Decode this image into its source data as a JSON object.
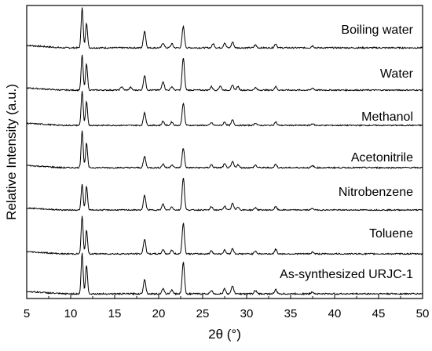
{
  "chart_data": {
    "type": "line",
    "xlabel": "2θ (°)",
    "ylabel": "Relative Intensity (a.u.)",
    "xlim": [
      5,
      50
    ],
    "xticks": [
      "5",
      "10",
      "15",
      "20",
      "25",
      "30",
      "35",
      "40",
      "45",
      "50"
    ],
    "grid": false,
    "legend": "none",
    "line_color": "#000000",
    "series": [
      {
        "name": "Boiling water",
        "peaks": [
          [
            11.3,
            1.0
          ],
          [
            11.8,
            0.62
          ],
          [
            18.4,
            0.42
          ],
          [
            20.5,
            0.12
          ],
          [
            21.5,
            0.1
          ],
          [
            22.8,
            0.52
          ],
          [
            26.2,
            0.1
          ],
          [
            27.5,
            0.12
          ],
          [
            28.4,
            0.14
          ],
          [
            31.0,
            0.07
          ],
          [
            33.3,
            0.1
          ],
          [
            37.5,
            0.05
          ]
        ]
      },
      {
        "name": "Water",
        "peaks": [
          [
            11.3,
            1.0
          ],
          [
            11.8,
            0.75
          ],
          [
            15.8,
            0.1
          ],
          [
            16.8,
            0.08
          ],
          [
            18.4,
            0.42
          ],
          [
            20.5,
            0.25
          ],
          [
            21.5,
            0.1
          ],
          [
            22.8,
            0.92
          ],
          [
            26.0,
            0.1
          ],
          [
            27.0,
            0.12
          ],
          [
            28.4,
            0.13
          ],
          [
            29.0,
            0.1
          ],
          [
            31.0,
            0.07
          ],
          [
            33.3,
            0.1
          ],
          [
            37.5,
            0.06
          ]
        ]
      },
      {
        "name": "Methanol",
        "peaks": [
          [
            11.3,
            1.0
          ],
          [
            11.8,
            0.68
          ],
          [
            18.4,
            0.38
          ],
          [
            20.5,
            0.12
          ],
          [
            21.5,
            0.1
          ],
          [
            22.8,
            0.65
          ],
          [
            26.0,
            0.08
          ],
          [
            27.5,
            0.1
          ],
          [
            28.4,
            0.16
          ],
          [
            31.0,
            0.07
          ],
          [
            33.3,
            0.1
          ],
          [
            37.5,
            0.05
          ]
        ]
      },
      {
        "name": "Acetonitrile",
        "peaks": [
          [
            11.3,
            1.0
          ],
          [
            11.8,
            0.65
          ],
          [
            18.4,
            0.3
          ],
          [
            20.5,
            0.1
          ],
          [
            21.5,
            0.08
          ],
          [
            22.8,
            0.52
          ],
          [
            26.0,
            0.08
          ],
          [
            27.5,
            0.1
          ],
          [
            28.4,
            0.16
          ],
          [
            29.0,
            0.08
          ],
          [
            31.0,
            0.07
          ],
          [
            33.3,
            0.09
          ],
          [
            37.5,
            0.05
          ]
        ]
      },
      {
        "name": "Nitrobenzene",
        "peaks": [
          [
            11.3,
            0.78
          ],
          [
            11.8,
            0.72
          ],
          [
            18.4,
            0.45
          ],
          [
            20.5,
            0.18
          ],
          [
            21.5,
            0.1
          ],
          [
            22.8,
            0.98
          ],
          [
            26.0,
            0.1
          ],
          [
            27.5,
            0.12
          ],
          [
            28.4,
            0.2
          ],
          [
            29.0,
            0.1
          ],
          [
            31.0,
            0.07
          ],
          [
            33.3,
            0.1
          ],
          [
            37.5,
            0.05
          ]
        ]
      },
      {
        "name": "Toluene",
        "peaks": [
          [
            11.3,
            1.0
          ],
          [
            11.8,
            0.62
          ],
          [
            18.4,
            0.4
          ],
          [
            20.5,
            0.12
          ],
          [
            21.5,
            0.1
          ],
          [
            22.8,
            0.82
          ],
          [
            26.0,
            0.08
          ],
          [
            27.5,
            0.1
          ],
          [
            28.4,
            0.14
          ],
          [
            31.0,
            0.08
          ],
          [
            33.3,
            0.12
          ],
          [
            37.5,
            0.05
          ]
        ]
      },
      {
        "name": "As-synthesized URJC-1",
        "peaks": [
          [
            11.3,
            1.0
          ],
          [
            11.8,
            0.7
          ],
          [
            18.4,
            0.36
          ],
          [
            20.5,
            0.12
          ],
          [
            21.5,
            0.1
          ],
          [
            22.8,
            0.78
          ],
          [
            26.0,
            0.08
          ],
          [
            27.5,
            0.12
          ],
          [
            28.4,
            0.2
          ],
          [
            31.0,
            0.08
          ],
          [
            33.3,
            0.1
          ],
          [
            37.5,
            0.05
          ]
        ]
      }
    ]
  }
}
